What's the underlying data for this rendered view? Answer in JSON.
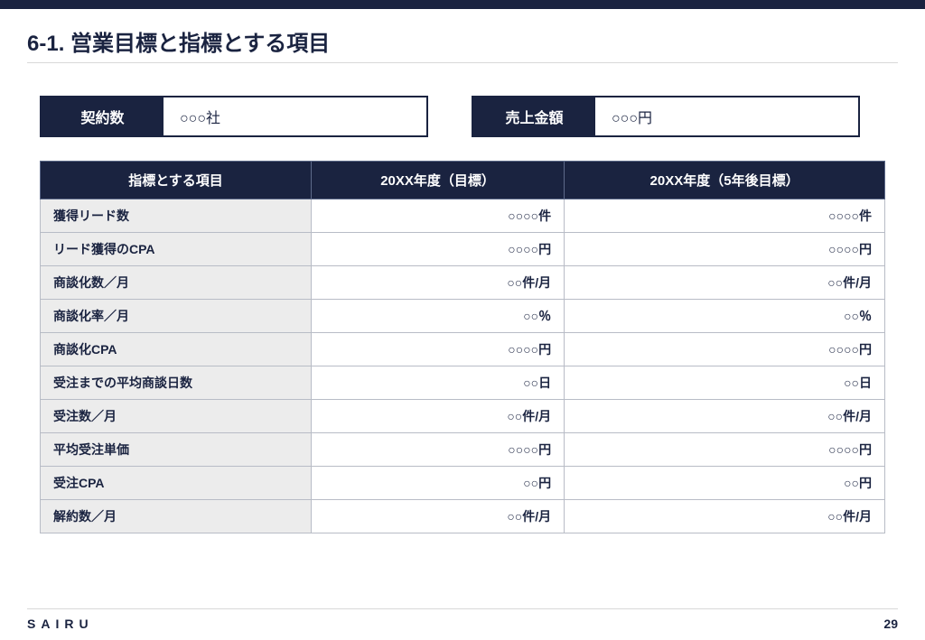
{
  "title": "6-1. 営業目標と指標とする項目",
  "kpi": {
    "contracts": {
      "label": "契約数",
      "value": "○○○社"
    },
    "revenue": {
      "label": "売上金額",
      "value": "○○○円"
    }
  },
  "table": {
    "headers": [
      "指標とする項目",
      "20XX年度（目標）",
      "20XX年度（5年後目標）"
    ],
    "rows": [
      {
        "label": "獲得リード数",
        "target": "○○○○件",
        "five_year": "○○○○件"
      },
      {
        "label": "リード獲得のCPA",
        "target": "○○○○円",
        "five_year": "○○○○円"
      },
      {
        "label": "商談化数／月",
        "target": "○○件/月",
        "five_year": "○○件/月"
      },
      {
        "label": "商談化率／月",
        "target": "○○％",
        "five_year": "○○％"
      },
      {
        "label": "商談化CPA",
        "target": "○○○○円",
        "five_year": "○○○○円"
      },
      {
        "label": "受注までの平均商談日数",
        "target": "○○日",
        "five_year": "○○日"
      },
      {
        "label": "受注数／月",
        "target": "○○件/月",
        "five_year": "○○件/月"
      },
      {
        "label": "平均受注単価",
        "target": "○○○○円",
        "five_year": "○○○○円"
      },
      {
        "label": "受注CPA",
        "target": "○○円",
        "five_year": "○○円"
      },
      {
        "label": "解約数／月",
        "target": "○○件/月",
        "five_year": "○○件/月"
      }
    ]
  },
  "footer": {
    "brand": "SAIRU",
    "page": "29"
  },
  "colors": {
    "navy": "#1a2340",
    "row_label_bg": "#ececec",
    "border_light": "#d8d8d8",
    "cell_border": "#b8bcc6"
  }
}
